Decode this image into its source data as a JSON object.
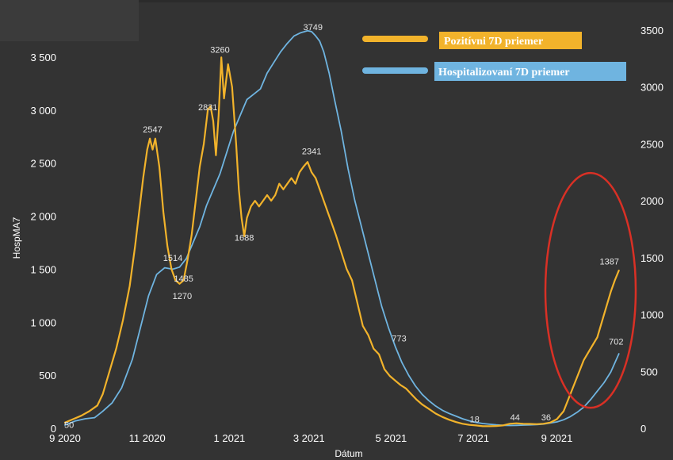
{
  "chart_data": {
    "type": "line",
    "xlabel": "Dátum",
    "ylabel": "HospMA7",
    "ylim_left": [
      0,
      3800
    ],
    "ylim_right": [
      0,
      3600
    ],
    "x_ticks": [
      {
        "label": "9 2020",
        "value": 0
      },
      {
        "label": "11 2020",
        "value": 61
      },
      {
        "label": "1 2021",
        "value": 122
      },
      {
        "label": "3 2021",
        "value": 181
      },
      {
        "label": "5 2021",
        "value": 242
      },
      {
        "label": "7 2021",
        "value": 303
      },
      {
        "label": "9 2021",
        "value": 365
      }
    ],
    "y_ticks_left": [
      {
        "label": "0",
        "value": 0
      },
      {
        "label": "500",
        "value": 500
      },
      {
        "label": "1 000",
        "value": 1000
      },
      {
        "label": "1 500",
        "value": 1500
      },
      {
        "label": "2 000",
        "value": 2000
      },
      {
        "label": "2 500",
        "value": 2500
      },
      {
        "label": "3 000",
        "value": 3000
      },
      {
        "label": "3 500",
        "value": 3500
      }
    ],
    "y_ticks_right": [
      {
        "label": "0",
        "value": 0
      },
      {
        "label": "500",
        "value": 500
      },
      {
        "label": "1000",
        "value": 1000
      },
      {
        "label": "1500",
        "value": 1500
      },
      {
        "label": "2000",
        "value": 2000
      },
      {
        "label": "2500",
        "value": 2500
      },
      {
        "label": "3000",
        "value": 3000
      },
      {
        "label": "3500",
        "value": 3500
      }
    ],
    "legend_placement": "top-right",
    "series": [
      {
        "name": "Pozitívni 7D priemer",
        "color": "#f2b32b",
        "axis": "right",
        "x": [
          0,
          6,
          12,
          18,
          24,
          28,
          33,
          38,
          43,
          48,
          52,
          55,
          58,
          61,
          63,
          65,
          67,
          70,
          73,
          76,
          79,
          82,
          85,
          88,
          91,
          94,
          97,
          100,
          103,
          106,
          108,
          110,
          112,
          114,
          116,
          118,
          121,
          124,
          127,
          129,
          131,
          133,
          135,
          138,
          141,
          144,
          147,
          150,
          153,
          156,
          159,
          162,
          165,
          168,
          171,
          174,
          177,
          180,
          183,
          186,
          189,
          192,
          195,
          198,
          201,
          205,
          209,
          213,
          217,
          221,
          225,
          229,
          233,
          237,
          241,
          245,
          249,
          253,
          257,
          261,
          265,
          270,
          275,
          280,
          285,
          290,
          295,
          300,
          305,
          310,
          315,
          320,
          325,
          330,
          335,
          340,
          345,
          350,
          355,
          360,
          365,
          370,
          375,
          380,
          385,
          390,
          395,
          400,
          405,
          408,
          411
        ],
        "y": [
          50,
          80,
          110,
          150,
          200,
          300,
          500,
          700,
          950,
          1250,
          1600,
          1900,
          2200,
          2450,
          2547,
          2450,
          2547,
          2300,
          1900,
          1600,
          1400,
          1300,
          1270,
          1300,
          1485,
          1700,
          2000,
          2300,
          2500,
          2800,
          2831,
          2700,
          2400,
          2750,
          3260,
          2900,
          3200,
          3000,
          2500,
          2100,
          1850,
          1688,
          1850,
          1950,
          2000,
          1950,
          2000,
          2050,
          2000,
          2050,
          2150,
          2100,
          2150,
          2200,
          2150,
          2250,
          2300,
          2341,
          2250,
          2200,
          2100,
          2000,
          1900,
          1800,
          1700,
          1550,
          1400,
          1300,
          1100,
          900,
          820,
          700,
          650,
          520,
          460,
          420,
          380,
          350,
          300,
          250,
          210,
          170,
          130,
          100,
          75,
          55,
          40,
          30,
          25,
          18,
          18,
          20,
          25,
          40,
          44,
          40,
          38,
          36,
          40,
          50,
          80,
          150,
          300,
          450,
          600,
          700,
          800,
          1000,
          1200,
          1300,
          1387
        ]
      },
      {
        "name": "Hospitalizovaní 7D priemer",
        "color": "#6fb4e0",
        "axis": "left",
        "x": [
          0,
          8,
          15,
          22,
          28,
          35,
          42,
          50,
          56,
          62,
          68,
          74,
          80,
          85,
          90,
          95,
          100,
          105,
          110,
          115,
          120,
          125,
          130,
          135,
          140,
          145,
          150,
          155,
          160,
          165,
          170,
          175,
          180,
          183,
          186,
          189,
          192,
          196,
          200,
          205,
          210,
          215,
          220,
          225,
          230,
          235,
          240,
          245,
          250,
          255,
          260,
          265,
          270,
          275,
          280,
          285,
          290,
          295,
          300,
          305,
          310,
          315,
          320,
          325,
          330,
          335,
          340,
          345,
          350,
          355,
          360,
          365,
          370,
          375,
          380,
          385,
          390,
          395,
          400,
          405,
          411
        ],
        "y": [
          30,
          70,
          90,
          100,
          160,
          240,
          380,
          650,
          950,
          1250,
          1450,
          1514,
          1500,
          1520,
          1600,
          1750,
          1900,
          2100,
          2250,
          2400,
          2600,
          2800,
          2950,
          3100,
          3150,
          3200,
          3350,
          3450,
          3550,
          3630,
          3700,
          3730,
          3749,
          3740,
          3700,
          3650,
          3550,
          3350,
          3100,
          2800,
          2450,
          2150,
          1900,
          1650,
          1400,
          1150,
          950,
          773,
          620,
          500,
          400,
          320,
          260,
          210,
          170,
          140,
          115,
          90,
          70,
          55,
          45,
          38,
          32,
          28,
          26,
          28,
          30,
          32,
          35,
          40,
          50,
          60,
          80,
          110,
          150,
          200,
          270,
          350,
          430,
          530,
          702
        ]
      }
    ],
    "data_labels": [
      {
        "text": "50",
        "x": 3,
        "y": 4,
        "axis": "left"
      },
      {
        "text": "2547",
        "x": 65,
        "y": 2790,
        "axis": "left"
      },
      {
        "text": "1514",
        "x": 80,
        "y": 1578,
        "axis": "left"
      },
      {
        "text": "1485",
        "x": 88,
        "y": 1383,
        "axis": "left"
      },
      {
        "text": "1270",
        "x": 87,
        "y": 1220,
        "axis": "left"
      },
      {
        "text": "2831",
        "x": 106,
        "y": 3000,
        "axis": "left"
      },
      {
        "text": "3260",
        "x": 115,
        "y": 3540,
        "axis": "left"
      },
      {
        "text": "1688",
        "x": 133,
        "y": 1770,
        "axis": "left"
      },
      {
        "text": "3749",
        "x": 184,
        "y": 3755,
        "axis": "left"
      },
      {
        "text": "2341",
        "x": 183,
        "y": 2585,
        "axis": "left"
      },
      {
        "text": "773",
        "x": 248,
        "y": 820,
        "axis": "left"
      },
      {
        "text": "18",
        "x": 304,
        "y": 55,
        "axis": "left"
      },
      {
        "text": "44",
        "x": 334,
        "y": 75,
        "axis": "left"
      },
      {
        "text": "36",
        "x": 357,
        "y": 75,
        "axis": "left"
      },
      {
        "text": "1387",
        "x": 404,
        "y": 1545,
        "axis": "left"
      },
      {
        "text": "702",
        "x": 409,
        "y": 788,
        "axis": "left"
      }
    ],
    "annotation": {
      "shape": "ellipse",
      "color": "#d93025",
      "center_x": 390,
      "center_y": 1300
    },
    "grid": false
  }
}
